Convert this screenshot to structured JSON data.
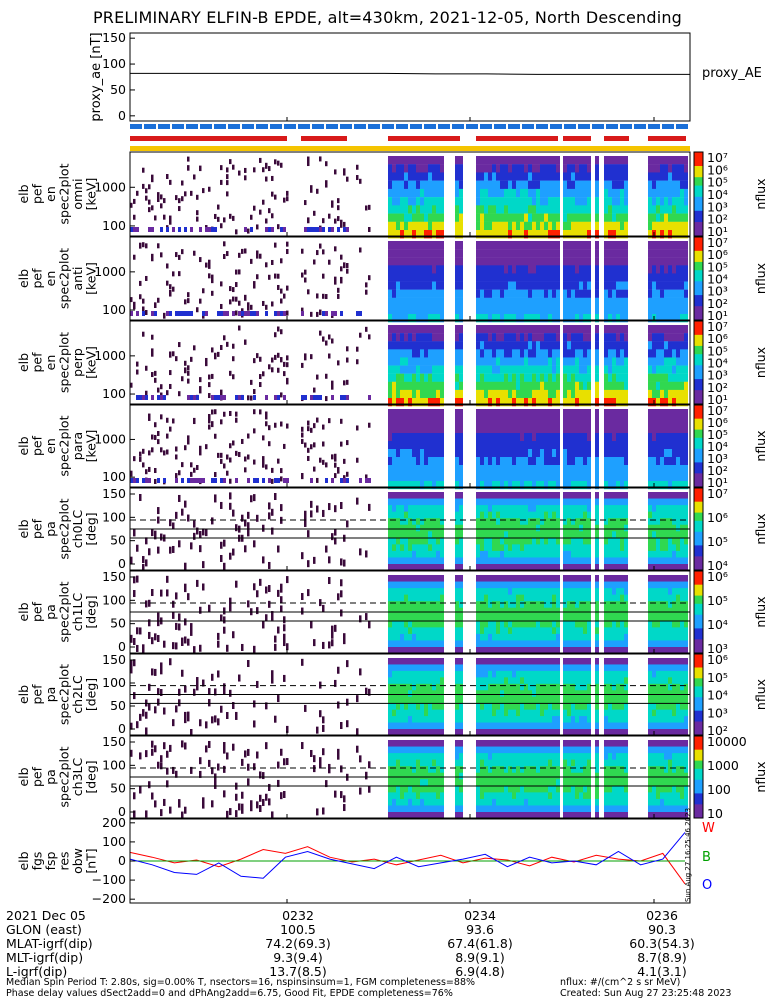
{
  "title": "PRELIMINARY ELFIN-B EPDE, alt=430km, 2021-12-05, North Descending",
  "colors": {
    "science_bar": "#1a6fd8",
    "sector_bar": "#d81a1a",
    "fgm_bar": "#f5c400",
    "trace_W": "#ff0000",
    "trace_B": "#00a000",
    "trace_O": "#0000ff"
  },
  "chart_data": [
    {
      "type": "line",
      "panel_id": "proxy_ae",
      "ylabel": "proxy_ae [nT]",
      "yticks": [
        "150",
        "100",
        "50",
        "0"
      ],
      "ylim": [
        -10,
        160
      ],
      "legend": "proxy_AE",
      "series": [
        {
          "name": "proxy_AE",
          "values": [
            82,
            82,
            82,
            82,
            82,
            82,
            81,
            81,
            80,
            80,
            80,
            80
          ]
        }
      ]
    },
    {
      "type": "heatmap",
      "panel_id": "en_spec_omni",
      "ylabel_lines": [
        "elb",
        "pef",
        "en",
        "spec2plot",
        "omni",
        "[keV]"
      ],
      "yticks": [
        "1000",
        "100"
      ],
      "colorbar_label": "nflux",
      "colorbar_ticks": [
        "10⁷",
        "10⁶",
        "10⁵",
        "10⁴",
        "10³",
        "10²",
        "10¹"
      ]
    },
    {
      "type": "heatmap",
      "panel_id": "en_spec_anti",
      "ylabel_lines": [
        "elb",
        "pef",
        "en",
        "spec2plot",
        "anti",
        "[keV]"
      ],
      "yticks": [
        "1000",
        "100"
      ],
      "colorbar_label": "nflux",
      "colorbar_ticks": [
        "10⁷",
        "10⁶",
        "10⁵",
        "10⁴",
        "10³",
        "10²",
        "10¹"
      ]
    },
    {
      "type": "heatmap",
      "panel_id": "en_spec_perp",
      "ylabel_lines": [
        "elb",
        "pef",
        "en",
        "spec2plot",
        "perp",
        "[keV]"
      ],
      "yticks": [
        "1000",
        "100"
      ],
      "colorbar_label": "nflux",
      "colorbar_ticks": [
        "10⁷",
        "10⁶",
        "10⁵",
        "10⁴",
        "10³",
        "10²",
        "10¹"
      ]
    },
    {
      "type": "heatmap",
      "panel_id": "en_spec_para",
      "ylabel_lines": [
        "elb",
        "pef",
        "en",
        "spec2plot",
        "para",
        "[keV]"
      ],
      "yticks": [
        "1000",
        "100"
      ],
      "colorbar_label": "nflux",
      "colorbar_ticks": [
        "10⁷",
        "10⁶",
        "10⁵",
        "10⁴",
        "10³",
        "10²",
        "10¹"
      ]
    },
    {
      "type": "heatmap",
      "panel_id": "pa_spec_ch0",
      "ylabel_lines": [
        "elb",
        "pef",
        "pa",
        "spec2plot",
        "ch0LC",
        "[deg]"
      ],
      "yticks": [
        "150",
        "100",
        "50",
        "0"
      ],
      "colorbar_label": "nflux",
      "colorbar_ticks": [
        "10⁷",
        "10⁶",
        "10⁵",
        "10⁴"
      ]
    },
    {
      "type": "heatmap",
      "panel_id": "pa_spec_ch1",
      "ylabel_lines": [
        "elb",
        "pef",
        "pa",
        "spec2plot",
        "ch1LC",
        "[deg]"
      ],
      "yticks": [
        "150",
        "100",
        "50",
        "0"
      ],
      "colorbar_label": "nflux",
      "colorbar_ticks": [
        "10⁶",
        "10⁵",
        "10⁴",
        "10³"
      ]
    },
    {
      "type": "heatmap",
      "panel_id": "pa_spec_ch2",
      "ylabel_lines": [
        "elb",
        "pef",
        "pa",
        "spec2plot",
        "ch2LC",
        "[deg]"
      ],
      "yticks": [
        "150",
        "100",
        "50",
        "0"
      ],
      "colorbar_label": "nflux",
      "colorbar_ticks": [
        "10⁶",
        "10⁵",
        "10⁴",
        "10³",
        "10²"
      ]
    },
    {
      "type": "heatmap",
      "panel_id": "pa_spec_ch3",
      "ylabel_lines": [
        "elb",
        "pef",
        "pa",
        "spec2plot",
        "ch3LC",
        "[deg]"
      ],
      "yticks": [
        "150",
        "100",
        "50",
        "0"
      ],
      "colorbar_label": "nflux",
      "colorbar_ticks": [
        "10000",
        "1000",
        "100",
        "10"
      ]
    },
    {
      "type": "line",
      "panel_id": "fgs_res_obw",
      "ylabel_lines": [
        "elb",
        "fgs",
        "fsp",
        "res",
        "obw",
        "[nT]"
      ],
      "yticks": [
        "200",
        "100",
        "0",
        "−100",
        "−200"
      ],
      "ylim": [
        -220,
        220
      ],
      "legend": [
        "W",
        "B",
        "O"
      ],
      "series": [
        {
          "name": "W",
          "values": [
            45,
            20,
            -10,
            5,
            -30,
            10,
            60,
            40,
            75,
            20,
            -5,
            10,
            -20,
            5,
            30,
            -10,
            15,
            5,
            -25,
            20,
            -5,
            30,
            10,
            0,
            40,
            -120
          ]
        },
        {
          "name": "B",
          "values": [
            0,
            0,
            0,
            0,
            0,
            0,
            0,
            0,
            0,
            0,
            0,
            0,
            0,
            0,
            0,
            0,
            0,
            0,
            0,
            0,
            0,
            0,
            0,
            0,
            0,
            0
          ]
        },
        {
          "name": "O",
          "values": [
            10,
            -20,
            -60,
            -70,
            -10,
            -80,
            -90,
            20,
            50,
            10,
            -15,
            -40,
            20,
            -30,
            -10,
            10,
            35,
            -30,
            20,
            -10,
            0,
            -20,
            50,
            -20,
            10,
            150
          ]
        }
      ]
    }
  ],
  "xaxis": {
    "tick_labels": [
      "0232",
      "0234",
      "0236"
    ],
    "rows": [
      {
        "label": "2021 Dec 05",
        "values": [
          "",
          "",
          ""
        ]
      },
      {
        "label": "GLON (east)",
        "values": [
          "100.5",
          "93.6",
          "90.3"
        ]
      },
      {
        "label": "MLAT-igrf(dip)",
        "values": [
          "74.2(69.3)",
          "67.4(61.8)",
          "60.3(54.3)"
        ]
      },
      {
        "label": "MLT-igrf(dip)",
        "values": [
          "9.3(9.4)",
          "8.9(9.1)",
          "8.7(8.9)"
        ]
      },
      {
        "label": "L-igrf(dip)",
        "values": [
          "13.7(8.5)",
          "6.9(4.8)",
          "4.1(3.1)"
        ]
      }
    ]
  },
  "side_stamp": "Sun Aug 27 16:25:46 2023",
  "footer": {
    "left_line1": "Median Spin Period T: 2.80s, sig=0.00% T, nsectors=16, nspinsinsum=1, FGM completeness=88%",
    "left_line2": "Phase delay values dSect2add=0 and dPhAng2add=6.75, Good Fit, EPDE completeness=76%",
    "right_line1": "nflux: #/(cm^2 s sr MeV)",
    "right_line2": "Created: Sun Aug 27 23:25:48 2023"
  }
}
